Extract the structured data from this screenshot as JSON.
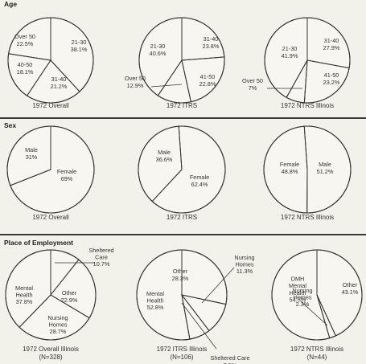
{
  "sections": {
    "age": "Age",
    "sex": "Sex",
    "employment": "Place of Employment"
  },
  "chart_data": [
    {
      "type": "pie",
      "section": "Age",
      "caption": "1972 Overall",
      "slices": [
        {
          "label": "21-30",
          "value": 38.1,
          "text": "21-30\n38.1%"
        },
        {
          "label": "31-40",
          "value": 21.2,
          "text": "31-40\n21.2%"
        },
        {
          "label": "40-50",
          "value": 18.1,
          "text": "40-50\n18.1%"
        },
        {
          "label": "Over 50",
          "value": 22.5,
          "text": "Over 50\n22.5%"
        }
      ]
    },
    {
      "type": "pie",
      "section": "Age",
      "caption": "1972 ITRS",
      "slices": [
        {
          "label": "31-40",
          "value": 23.8,
          "text": "31-40\n23.8%"
        },
        {
          "label": "41-50",
          "value": 22.8,
          "text": "41-50\n22.8%"
        },
        {
          "label": "Over 50",
          "value": 12.9,
          "text": "Over 50\n12.9%"
        },
        {
          "label": "21-30",
          "value": 40.6,
          "text": "21-30\n40.6%"
        }
      ]
    },
    {
      "type": "pie",
      "section": "Age",
      "caption": "1972 NTRS Illinois",
      "slices": [
        {
          "label": "31-40",
          "value": 27.9,
          "text": "31-40\n27.9%"
        },
        {
          "label": "41-50",
          "value": 23.2,
          "text": "41-50\n23.2%"
        },
        {
          "label": "Over 50",
          "value": 7.0,
          "text": "Over 50\n7%"
        },
        {
          "label": "21-30",
          "value": 41.9,
          "text": "21-30\n41.9%"
        }
      ]
    },
    {
      "type": "pie",
      "section": "Sex",
      "caption": "1972 Overall",
      "slices": [
        {
          "label": "Female",
          "value": 69,
          "text": "Female\n69%"
        },
        {
          "label": "Male",
          "value": 31,
          "text": "Male\n31%"
        }
      ]
    },
    {
      "type": "pie",
      "section": "Sex",
      "caption": "1972 ITRS",
      "slices": [
        {
          "label": "Female",
          "value": 62.4,
          "text": "Female\n62.4%"
        },
        {
          "label": "Male",
          "value": 36.6,
          "text": "Male\n36.6%"
        }
      ]
    },
    {
      "type": "pie",
      "section": "Sex",
      "caption": "1972 NTRS Illinois",
      "slices": [
        {
          "label": "Male",
          "value": 51.2,
          "text": "Male\n51.2%"
        },
        {
          "label": "Female",
          "value": 48.8,
          "text": "Female\n48.8%"
        }
      ]
    },
    {
      "type": "pie",
      "section": "Place of Employment",
      "caption": "1972 Overall Illinois",
      "caption2": "(N=328)",
      "slices": [
        {
          "label": "Sheltered Care",
          "value": 10.7,
          "text": "Sheltered\nCare\n10.7%"
        },
        {
          "label": "Other",
          "value": 22.9,
          "text": "Other\n22.9%"
        },
        {
          "label": "Nursing Homes",
          "value": 28.7,
          "text": "Nursing\nHomes\n28.7%"
        },
        {
          "label": "Mental Health",
          "value": 37.8,
          "text": "Mental\nHealth\n37.8%"
        }
      ]
    },
    {
      "type": "pie",
      "section": "Place of Employment",
      "caption": "1972 ITRS Illinois",
      "caption2": "(N=106)",
      "slices": [
        {
          "label": "Other",
          "value": 28.3,
          "text": "Other\n28.3%"
        },
        {
          "label": "Nursing Homes",
          "value": 11.3,
          "text": "Nursing\nHomes\n11.3%"
        },
        {
          "label": "Sheltered Care",
          "value": 7.5,
          "text": "Sheltered Care\n7.5%"
        },
        {
          "label": "Mental Health",
          "value": 52.8,
          "text": "Mental\nHealth\n52.8%"
        }
      ]
    },
    {
      "type": "pie",
      "section": "Place of Employment",
      "caption": "1972 NTRS Illinois",
      "caption2": "(N=44)",
      "slices": [
        {
          "label": "Other",
          "value": 43.1,
          "text": "Other\n43.1%"
        },
        {
          "label": "Nursing Homes",
          "value": 2.3,
          "text": "Nursing\nHomes\n2.3%"
        },
        {
          "label": "DMH Mental Health",
          "value": 54.5,
          "text": "DMH\nMental\nHealth\n54.5%"
        }
      ]
    }
  ]
}
